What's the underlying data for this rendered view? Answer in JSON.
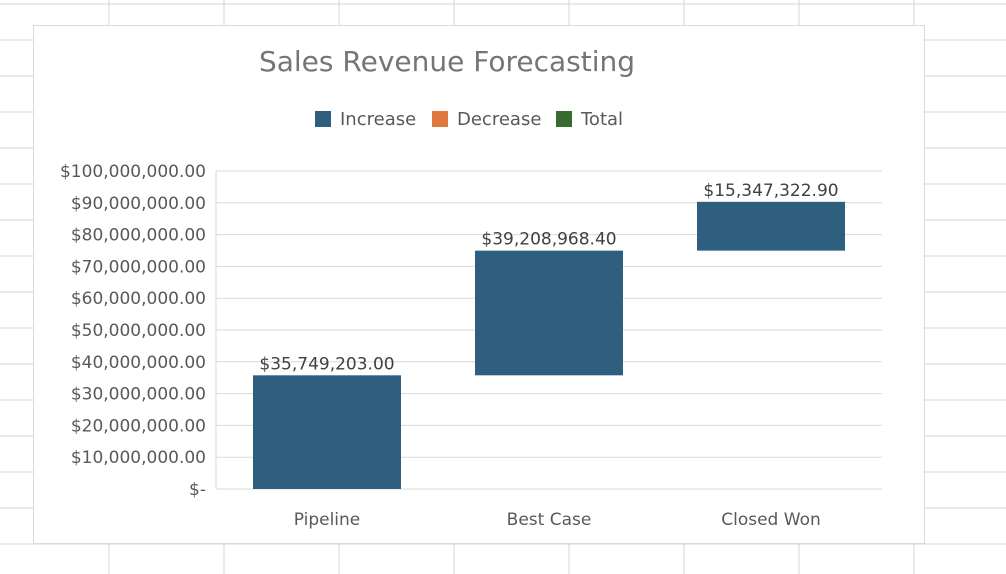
{
  "chart_data": {
    "type": "waterfall",
    "title": "Sales Revenue Forecasting",
    "legend": {
      "placement": "top",
      "entries": [
        {
          "name": "Increase",
          "color": "#2e5f7f"
        },
        {
          "name": "Decrease",
          "color": "#dd7840"
        },
        {
          "name": "Total",
          "color": "#376b2f"
        }
      ]
    },
    "categories": [
      "Pipeline",
      "Best Case",
      "Closed Won"
    ],
    "values": [
      35749203.0,
      39208968.4,
      15347322.9
    ],
    "data_labels": [
      "$35,749,203.00",
      "$39,208,968.40",
      "$15,347,322.90"
    ],
    "ylim": [
      0,
      100000000
    ],
    "yticks": [
      0,
      10000000,
      20000000,
      30000000,
      40000000,
      50000000,
      60000000,
      70000000,
      80000000,
      90000000,
      100000000
    ],
    "ytick_labels": [
      "$-",
      "$10,000,000.00",
      "$20,000,000.00",
      "$30,000,000.00",
      "$40,000,000.00",
      "$50,000,000.00",
      "$60,000,000.00",
      "$70,000,000.00",
      "$80,000,000.00",
      "$90,000,000.00",
      "$100,000,000.00"
    ],
    "grid": true,
    "xlabel": "",
    "ylabel": ""
  }
}
